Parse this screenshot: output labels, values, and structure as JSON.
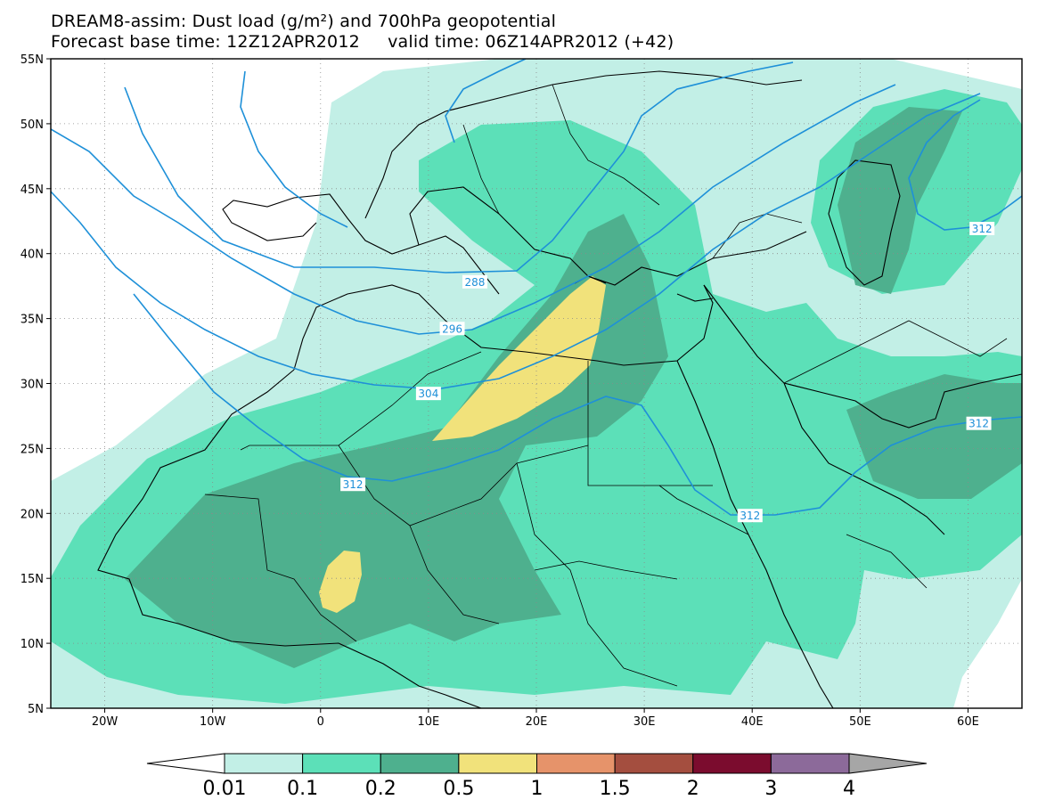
{
  "header": {
    "title_line1": "DREAM8-assim: Dust load (g/m²) and 700hPa geopotential",
    "title_line2": "Forecast base time: 12Z12APR2012     valid time: 06Z14APR2012 (+42)"
  },
  "map": {
    "lon_range": [
      -25,
      65
    ],
    "lat_range": [
      5,
      55
    ],
    "lat_ticks": [
      {
        "value": 55,
        "label": "55N"
      },
      {
        "value": 50,
        "label": "50N"
      },
      {
        "value": 45,
        "label": "45N"
      },
      {
        "value": 40,
        "label": "40N"
      },
      {
        "value": 35,
        "label": "35N"
      },
      {
        "value": 30,
        "label": "30N"
      },
      {
        "value": 25,
        "label": "25N"
      },
      {
        "value": 20,
        "label": "20N"
      },
      {
        "value": 15,
        "label": "15N"
      },
      {
        "value": 10,
        "label": "10N"
      },
      {
        "value": 5,
        "label": "5N"
      }
    ],
    "lon_ticks": [
      {
        "value": -20,
        "label": "20W"
      },
      {
        "value": -10,
        "label": "10W"
      },
      {
        "value": 0,
        "label": "0"
      },
      {
        "value": 10,
        "label": "10E"
      },
      {
        "value": 20,
        "label": "20E"
      },
      {
        "value": 30,
        "label": "30E"
      },
      {
        "value": 40,
        "label": "40E"
      },
      {
        "value": 50,
        "label": "50E"
      },
      {
        "value": 60,
        "label": "60E"
      }
    ],
    "contour_color": "#1e90d8",
    "contour_labels": [
      {
        "text": "288",
        "lon": 14.3,
        "lat": 37.8
      },
      {
        "text": "296",
        "lon": 12.2,
        "lat": 34.2
      },
      {
        "text": "304",
        "lon": 10.0,
        "lat": 29.2
      },
      {
        "text": "312",
        "lon": 3.0,
        "lat": 22.2
      },
      {
        "text": "312",
        "lon": 39.8,
        "lat": 19.8
      },
      {
        "text": "312",
        "lon": 61.0,
        "lat": 26.9
      },
      {
        "text": "312",
        "lon": 61.3,
        "lat": 41.9
      }
    ]
  },
  "colorbar": {
    "labels": [
      "0.01",
      "0.1",
      "0.2",
      "0.5",
      "1",
      "1.5",
      "2",
      "3",
      "4"
    ],
    "colors": [
      "#ffffff",
      "#c2efe6",
      "#5ce0b8",
      "#4eb08e",
      "#f1e27b",
      "#e6936a",
      "#a44e3f",
      "#7b0c2e",
      "#8c6a9a",
      "#a6a6a6"
    ]
  }
}
